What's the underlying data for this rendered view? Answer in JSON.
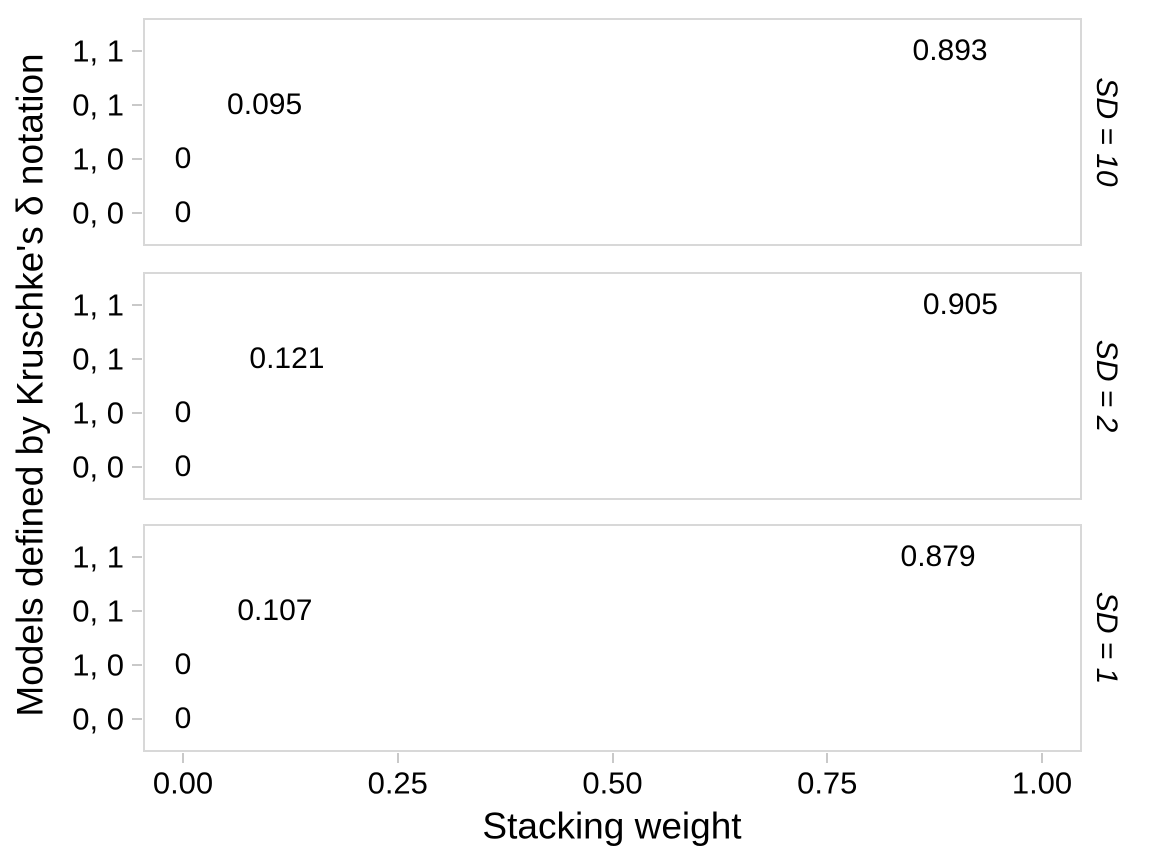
{
  "figure": {
    "x_axis": {
      "title": "Stacking weight",
      "tick_labels": [
        "0.00",
        "0.25",
        "0.50",
        "0.75",
        "1.00"
      ],
      "tick_values": [
        0,
        0.25,
        0.5,
        0.75,
        1.0
      ]
    },
    "y_axis": {
      "title": "Models defined by Kruschke's δ notation",
      "categories": [
        "1, 1",
        "0, 1",
        "1, 0",
        "0, 0"
      ]
    },
    "colors": {
      "background": "#ffffff",
      "panel_border": "#d8d8d8",
      "tick_mark": "#c9c9c9",
      "text": "#000000"
    }
  },
  "chart_data": {
    "type": "scatter",
    "subtype": "faceted-text-label-plot",
    "title": "",
    "xlabel": "Stacking weight",
    "ylabel": "Models defined by Kruschke's δ notation",
    "xlim": [
      -0.047,
      1.047
    ],
    "x_ticks": [
      0,
      0.25,
      0.5,
      0.75,
      1.0
    ],
    "y_categories_top_to_bottom": [
      "1, 1",
      "0, 1",
      "1, 0",
      "0, 0"
    ],
    "grid": "off",
    "legend": "none",
    "facet_strip_position": "right",
    "facets": [
      {
        "strip_label": "SD = 10",
        "points": [
          {
            "model": "1, 1",
            "weight": 0.893,
            "label": "0.893"
          },
          {
            "model": "0, 1",
            "weight": 0.095,
            "label": "0.095"
          },
          {
            "model": "1, 0",
            "weight": 0,
            "label": "0"
          },
          {
            "model": "0, 0",
            "weight": 0,
            "label": "0"
          }
        ]
      },
      {
        "strip_label": "SD = 2",
        "points": [
          {
            "model": "1, 1",
            "weight": 0.905,
            "label": "0.905"
          },
          {
            "model": "0, 1",
            "weight": 0.121,
            "label": "0.121"
          },
          {
            "model": "1, 0",
            "weight": 0,
            "label": "0"
          },
          {
            "model": "0, 0",
            "weight": 0,
            "label": "0"
          }
        ]
      },
      {
        "strip_label": "SD = 1",
        "points": [
          {
            "model": "1, 1",
            "weight": 0.879,
            "label": "0.879"
          },
          {
            "model": "0, 1",
            "weight": 0.107,
            "label": "0.107"
          },
          {
            "model": "1, 0",
            "weight": 0,
            "label": "0"
          },
          {
            "model": "0, 0",
            "weight": 0,
            "label": "0"
          }
        ]
      }
    ]
  }
}
